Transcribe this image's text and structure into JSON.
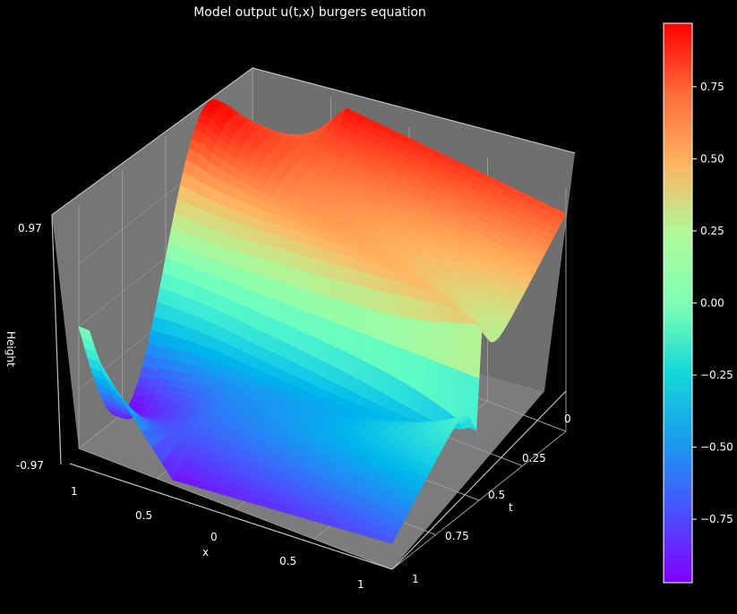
{
  "chart_data": {
    "type": "surface",
    "title": "Model output u(t,x) burgers equation",
    "xlabel": "x",
    "tlabel": "t",
    "zlabel": "Height",
    "x_range": [
      -1,
      1
    ],
    "t_range": [
      0,
      1
    ],
    "zlim": [
      -0.97,
      0.97
    ],
    "x_ticks": [
      "1",
      "0.5",
      "0",
      "0.5",
      "1"
    ],
    "t_ticks": [
      "0",
      "0.25",
      "0.5",
      "0.75",
      "1"
    ],
    "z_ticks": [
      "0.97",
      "-0.97"
    ],
    "colormap": "rainbow",
    "colorbar": {
      "range": [
        -0.97,
        0.97
      ],
      "ticks": [
        "0.75",
        "0.50",
        "0.25",
        "0.00",
        "−0.25",
        "−0.50",
        "−0.75"
      ],
      "tick_values": [
        0.75,
        0.5,
        0.25,
        0.0,
        -0.25,
        -0.5,
        -0.75
      ]
    },
    "function": "u(t,x) = -sin(pi x) at t=0, steepening into a shock at x=0 as t increases",
    "background": "#000000",
    "pane_color": "#7f7f7f",
    "grid": true
  }
}
